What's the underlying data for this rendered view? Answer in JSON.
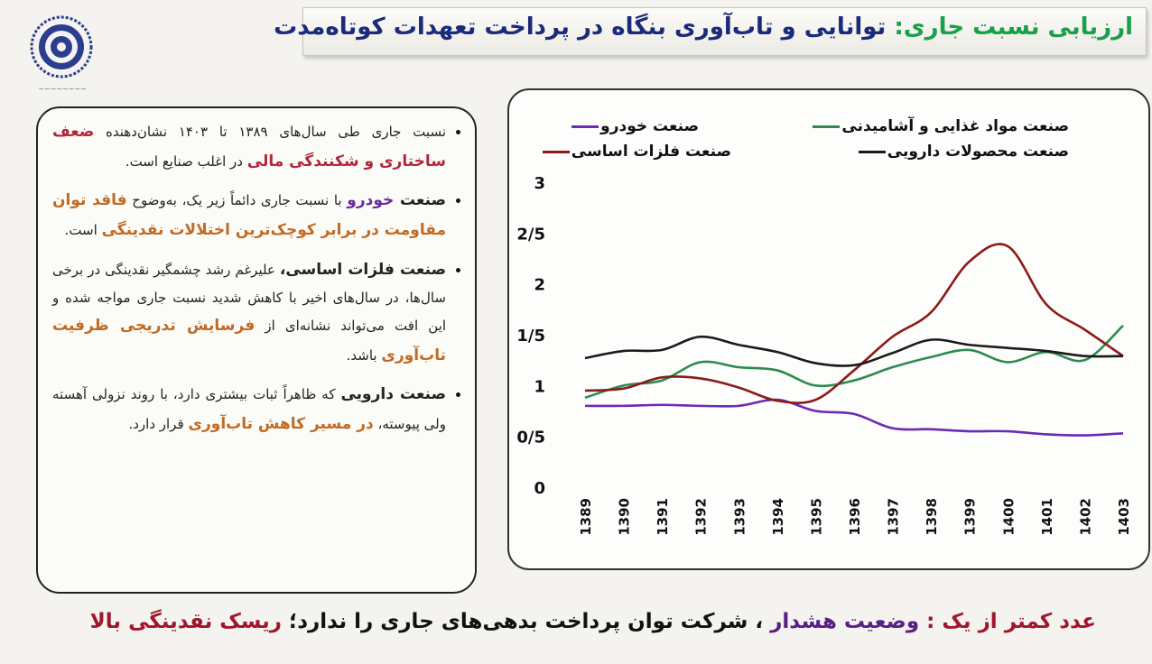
{
  "header": {
    "title_key": "ارزیابی نسبت جاری:",
    "title_rest": " توانایی و تاب‌آوری بنگاه در پرداخت تعهدات کوتاه‌مدت"
  },
  "panel": {
    "b1": {
      "t1": "نسبت جاری طی سال‌های ۱۳۸۹ تا ۱۴۰۳ نشان‌دهنده ",
      "t2": "ضعف ساختاری و شکنندگی مالی",
      "t3": " در اغلب صنایع است."
    },
    "b2": {
      "t1": "صنعت ",
      "t2": "خودرو",
      "t3": " با نسبت جاری دائماً زیر یک، به‌وضوح ",
      "t4": "فاقد توان مقاومت در برابر کوچک‌ترین اختلالات نقدینگی",
      "t5": " است."
    },
    "b3": {
      "t1": "صنعت فلزات اساسی،",
      "t2": " علیرغم رشد چشمگیر نقدینگی در برخی سال‌ها، در سال‌های اخیر با کاهش شدید نسبت جاری مواجه شده و این افت می‌تواند نشانه‌ای از ",
      "t3": "فرسایش تدریجی ظرفیت تاب‌آوری",
      "t4": " باشد."
    },
    "b4": {
      "t1": "صنعت دارویی",
      "t2": " که ظاهراً ثبات بیشتری دارد، با روند نزولی آهسته ولی پیوسته، ",
      "t3": "در مسیر کاهش تاب‌آوری",
      "t4": " قرار دارد."
    }
  },
  "footer": {
    "p1": "عدد کمتر از یک : ",
    "p2": "وضعیت هشدار",
    "p3": " ، شرکت توان پرداخت بدهی‌های جاری را ندارد؛ ",
    "p4": "ریسک نقدینگی بالا"
  },
  "chart_data": {
    "type": "line",
    "x": [
      "1389",
      "1390",
      "1391",
      "1392",
      "1393",
      "1394",
      "1395",
      "1396",
      "1397",
      "1398",
      "1399",
      "1400",
      "1401",
      "1402",
      "1403"
    ],
    "y_ticks": [
      "0",
      "0/5",
      "1",
      "1/5",
      "2",
      "2/5",
      "3"
    ],
    "ylim": [
      0,
      3
    ],
    "grid": false,
    "legend_position": "top",
    "series": [
      {
        "name": "صنعت خودرو",
        "color": "#6a2bb5",
        "values": [
          0.8,
          0.8,
          0.81,
          0.8,
          0.8,
          0.86,
          0.75,
          0.72,
          0.58,
          0.57,
          0.55,
          0.55,
          0.52,
          0.51,
          0.53
        ]
      },
      {
        "name": "صنعت مواد غذایی و آشامیدنی",
        "color": "#2e8b4f",
        "values": [
          0.88,
          1.0,
          1.05,
          1.23,
          1.18,
          1.15,
          1.0,
          1.05,
          1.18,
          1.28,
          1.35,
          1.23,
          1.33,
          1.25,
          1.59
        ]
      },
      {
        "name": "صنعت فلزات اساسی",
        "color": "#8b1a1a",
        "values": [
          0.95,
          0.97,
          1.08,
          1.07,
          0.98,
          0.85,
          0.86,
          1.15,
          1.48,
          1.72,
          2.22,
          2.37,
          1.8,
          1.55,
          1.29
        ]
      },
      {
        "name": "صنعت محصولات دارویی",
        "color": "#1a1a1a",
        "values": [
          1.27,
          1.34,
          1.35,
          1.48,
          1.4,
          1.33,
          1.22,
          1.2,
          1.32,
          1.45,
          1.4,
          1.37,
          1.34,
          1.29,
          1.29
        ]
      }
    ]
  }
}
